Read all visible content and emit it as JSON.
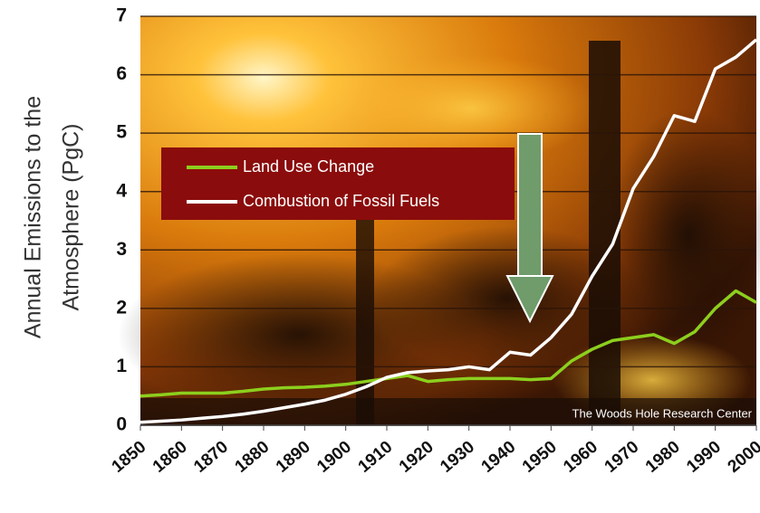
{
  "chart_data": {
    "type": "line",
    "y_label": [
      "Annual Emissions to the",
      "Atmosphere (PgC)"
    ],
    "source": "The Woods Hole Research Center",
    "x": [
      1850,
      1855,
      1860,
      1865,
      1870,
      1875,
      1880,
      1885,
      1890,
      1895,
      1900,
      1905,
      1910,
      1915,
      1920,
      1925,
      1930,
      1935,
      1940,
      1945,
      1950,
      1955,
      1960,
      1965,
      1970,
      1975,
      1980,
      1985,
      1990,
      1995,
      2000
    ],
    "series": [
      {
        "name": "Land Use Change",
        "color": "#8ccf1e",
        "values": [
          0.5,
          0.52,
          0.55,
          0.55,
          0.55,
          0.58,
          0.62,
          0.64,
          0.65,
          0.67,
          0.7,
          0.75,
          0.8,
          0.85,
          0.75,
          0.78,
          0.8,
          0.8,
          0.8,
          0.78,
          0.8,
          1.1,
          1.3,
          1.45,
          1.5,
          1.55,
          1.4,
          1.6,
          2.0,
          2.3,
          2.1
        ]
      },
      {
        "name": "Combustion of Fossil Fuels",
        "color": "#ffffff",
        "values": [
          0.05,
          0.07,
          0.09,
          0.12,
          0.15,
          0.19,
          0.24,
          0.3,
          0.36,
          0.43,
          0.53,
          0.66,
          0.82,
          0.9,
          0.93,
          0.95,
          1.0,
          0.95,
          1.25,
          1.2,
          1.5,
          1.9,
          2.55,
          3.1,
          4.05,
          4.6,
          5.3,
          5.2,
          6.1,
          6.3,
          6.6
        ]
      }
    ],
    "xlim": [
      1850,
      2000
    ],
    "xticks": [
      1850,
      1860,
      1870,
      1880,
      1890,
      1900,
      1910,
      1920,
      1930,
      1940,
      1950,
      1960,
      1970,
      1980,
      1990,
      2000
    ],
    "ylim": [
      0,
      7
    ],
    "yticks": [
      0,
      1,
      2,
      3,
      4,
      5,
      6,
      7
    ],
    "grid": true
  }
}
